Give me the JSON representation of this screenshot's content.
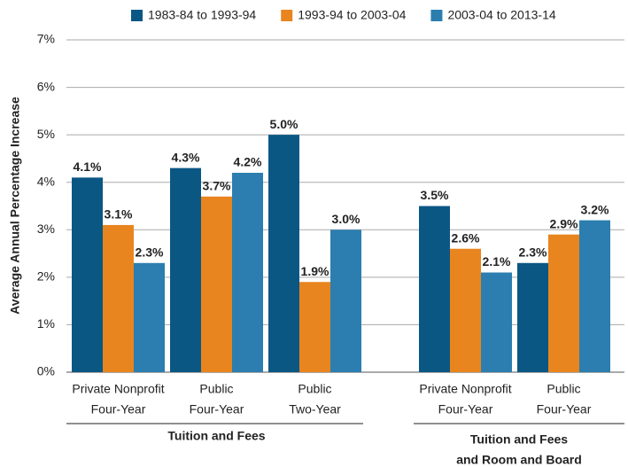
{
  "chart_data": {
    "type": "bar",
    "y_label": "Average Annual Percentage Increase",
    "groups": [
      {
        "name": [
          "Tuition and Fees"
        ],
        "categories": [
          [
            "Private Nonprofit",
            "Four-Year"
          ],
          [
            "Public",
            "Four-Year"
          ],
          [
            "Public",
            "Two-Year"
          ]
        ]
      },
      {
        "name": [
          "Tuition and Fees",
          "and Room and Board"
        ],
        "categories": [
          [
            "Private Nonprofit",
            "Four-Year"
          ],
          [
            "Public",
            "Four-Year"
          ]
        ]
      }
    ],
    "series": [
      {
        "name": "1983-84 to 1993-94",
        "color": "#0b5784",
        "values": [
          4.1,
          4.3,
          5.0,
          3.5,
          2.3
        ],
        "value_labels": [
          "4.1%",
          "4.3%",
          "5.0%",
          "3.5%",
          "2.3%"
        ]
      },
      {
        "name": "1993-94 to 2003-04",
        "color": "#e8851f",
        "values": [
          3.1,
          3.7,
          1.9,
          2.6,
          2.9
        ],
        "value_labels": [
          "3.1%",
          "3.7%",
          "1.9%",
          "2.6%",
          "2.9%"
        ]
      },
      {
        "name": "2003-04 to 2013-14",
        "color": "#2b7eaf",
        "values": [
          2.3,
          4.2,
          3.0,
          2.1,
          3.2
        ],
        "value_labels": [
          "2.3%",
          "4.2%",
          "3.0%",
          "2.1%",
          "3.2%"
        ]
      }
    ],
    "ylim": [
      0,
      7
    ],
    "yticks": [
      {
        "value": 0,
        "label": "0%"
      },
      {
        "value": 1,
        "label": "1%"
      },
      {
        "value": 2,
        "label": "2%"
      },
      {
        "value": 3,
        "label": "3%"
      },
      {
        "value": 4,
        "label": "4%"
      },
      {
        "value": 5,
        "label": "5%"
      },
      {
        "value": 6,
        "label": "6%"
      },
      {
        "value": 7,
        "label": "7%"
      }
    ],
    "grid": true
  }
}
